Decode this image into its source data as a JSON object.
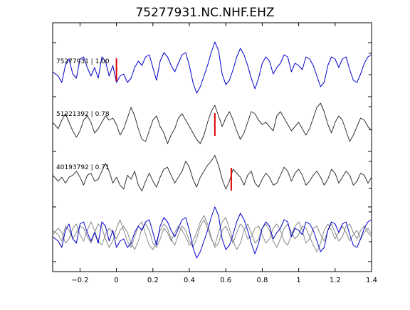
{
  "chart_data": {
    "type": "line",
    "title": "75277931.NC.NHF.EHZ",
    "xlabel": "",
    "ylabel": "",
    "xlim": [
      -0.35,
      1.4
    ],
    "xticks": [
      -0.2,
      0,
      0.2,
      0.4,
      0.6,
      0.8,
      1,
      1.2,
      1.4
    ],
    "xtick_labels": [
      "−0.2",
      "0",
      "0.2",
      "0.4",
      "0.6",
      "0.8",
      "1",
      "1.2",
      "1.4"
    ],
    "grid": false,
    "colors": {
      "reference": "#0000cc",
      "neighbor": "#333333",
      "overlay_gray": "#8a8a8a",
      "pick": "#dd0000"
    },
    "traces": [
      {
        "label": "75277931 | 1.00",
        "color": "reference",
        "pick_time": 0.0,
        "pick_height": 1.0,
        "x": [
          -0.35,
          -0.32,
          -0.3,
          -0.28,
          -0.26,
          -0.24,
          -0.22,
          -0.2,
          -0.18,
          -0.16,
          -0.14,
          -0.12,
          -0.1,
          -0.08,
          -0.06,
          -0.04,
          -0.02,
          0.0,
          0.02,
          0.04,
          0.06,
          0.08,
          0.1,
          0.12,
          0.14,
          0.16,
          0.18,
          0.2,
          0.22,
          0.24,
          0.26,
          0.28,
          0.3,
          0.32,
          0.34,
          0.36,
          0.38,
          0.4,
          0.42,
          0.44,
          0.46,
          0.48,
          0.5,
          0.52,
          0.54,
          0.56,
          0.58,
          0.6,
          0.62,
          0.64,
          0.66,
          0.68,
          0.7,
          0.72,
          0.74,
          0.76,
          0.78,
          0.8,
          0.82,
          0.84,
          0.86,
          0.88,
          0.9,
          0.92,
          0.94,
          0.96,
          0.98,
          1.0,
          1.02,
          1.04,
          1.06,
          1.08,
          1.1,
          1.12,
          1.14,
          1.16,
          1.18,
          1.2,
          1.22,
          1.24,
          1.26,
          1.28,
          1.3,
          1.32,
          1.34,
          1.36,
          1.38,
          1.4
        ],
        "y": [
          -0.1,
          -0.3,
          -0.6,
          0.2,
          0.5,
          -0.2,
          -0.4,
          0.5,
          0.6,
          0.1,
          -0.3,
          0.1,
          -0.4,
          0.6,
          0.4,
          -0.3,
          0.2,
          -0.6,
          -0.3,
          -0.2,
          -0.6,
          -0.4,
          0.1,
          0.4,
          0.2,
          0.6,
          0.7,
          0.1,
          -0.5,
          0.4,
          0.8,
          0.6,
          0.2,
          -0.1,
          0.3,
          0.7,
          0.8,
          0.2,
          -0.6,
          -1.1,
          -0.8,
          -0.3,
          0.2,
          0.8,
          1.3,
          0.9,
          -0.2,
          -0.7,
          -0.5,
          0.0,
          0.6,
          1.0,
          0.7,
          0.2,
          -0.4,
          -0.9,
          -0.4,
          0.3,
          0.6,
          0.4,
          -0.2,
          0.1,
          0.3,
          0.7,
          0.6,
          -0.1,
          0.3,
          0.2,
          0.0,
          0.6,
          0.5,
          0.2,
          -0.3,
          -0.8,
          -0.6,
          0.2,
          0.6,
          0.5,
          0.1,
          0.5,
          0.6,
          0.0,
          -0.5,
          -0.6,
          -0.2,
          0.3,
          0.6,
          0.7
        ]
      },
      {
        "label": "51221392 | 0.78",
        "color": "neighbor",
        "pick_time": 0.54,
        "pick_height": 1.0,
        "x": [
          -0.35,
          -0.32,
          -0.3,
          -0.28,
          -0.26,
          -0.24,
          -0.22,
          -0.2,
          -0.18,
          -0.16,
          -0.14,
          -0.12,
          -0.1,
          -0.08,
          -0.06,
          -0.04,
          -0.02,
          0.0,
          0.02,
          0.04,
          0.06,
          0.08,
          0.1,
          0.12,
          0.14,
          0.16,
          0.18,
          0.2,
          0.22,
          0.24,
          0.26,
          0.28,
          0.3,
          0.32,
          0.34,
          0.36,
          0.38,
          0.4,
          0.42,
          0.44,
          0.46,
          0.48,
          0.5,
          0.52,
          0.54,
          0.56,
          0.58,
          0.6,
          0.62,
          0.64,
          0.66,
          0.68,
          0.7,
          0.72,
          0.74,
          0.76,
          0.78,
          0.8,
          0.82,
          0.84,
          0.86,
          0.88,
          0.9,
          0.92,
          0.94,
          0.96,
          0.98,
          1.0,
          1.02,
          1.04,
          1.06,
          1.08,
          1.1,
          1.12,
          1.14,
          1.16,
          1.18,
          1.2,
          1.22,
          1.24,
          1.26,
          1.28,
          1.3,
          1.32,
          1.34,
          1.36,
          1.38,
          1.4
        ],
        "y": [
          0.1,
          -0.2,
          0.2,
          0.5,
          0.1,
          -0.3,
          -0.6,
          -0.3,
          0.2,
          0.4,
          0.1,
          -0.4,
          -0.2,
          0.1,
          0.4,
          0.2,
          0.3,
          0.0,
          -0.5,
          -0.2,
          0.3,
          0.8,
          0.4,
          -0.2,
          -0.7,
          -0.8,
          -0.3,
          0.2,
          0.4,
          -0.1,
          -0.4,
          -0.9,
          -0.5,
          -0.2,
          0.3,
          0.5,
          0.2,
          -0.1,
          -0.4,
          -0.7,
          -0.9,
          -0.5,
          0.1,
          0.6,
          0.9,
          0.4,
          -0.1,
          0.3,
          0.6,
          0.2,
          -0.3,
          -0.7,
          -0.4,
          0.1,
          0.6,
          0.5,
          0.2,
          0.0,
          0.1,
          -0.1,
          -0.3,
          0.4,
          0.6,
          0.3,
          0.0,
          -0.3,
          -0.1,
          0.1,
          -0.2,
          -0.5,
          -0.2,
          0.3,
          0.8,
          1.0,
          0.6,
          0.0,
          -0.4,
          0.1,
          0.4,
          0.2,
          -0.3,
          -0.8,
          -0.5,
          -0.1,
          0.3,
          0.2,
          -0.1,
          -0.3
        ]
      },
      {
        "label": "40193792 | 0.71",
        "color": "neighbor",
        "pick_time": 0.63,
        "pick_height": 1.0,
        "x": [
          -0.35,
          -0.32,
          -0.3,
          -0.28,
          -0.26,
          -0.24,
          -0.22,
          -0.2,
          -0.18,
          -0.16,
          -0.14,
          -0.12,
          -0.1,
          -0.08,
          -0.06,
          -0.04,
          -0.02,
          0.0,
          0.02,
          0.04,
          0.06,
          0.08,
          0.1,
          0.12,
          0.14,
          0.16,
          0.18,
          0.2,
          0.22,
          0.24,
          0.26,
          0.28,
          0.3,
          0.32,
          0.34,
          0.36,
          0.38,
          0.4,
          0.42,
          0.44,
          0.46,
          0.48,
          0.5,
          0.52,
          0.54,
          0.56,
          0.58,
          0.6,
          0.62,
          0.64,
          0.66,
          0.68,
          0.7,
          0.72,
          0.74,
          0.76,
          0.78,
          0.8,
          0.82,
          0.84,
          0.86,
          0.88,
          0.9,
          0.92,
          0.94,
          0.96,
          0.98,
          1.0,
          1.02,
          1.04,
          1.06,
          1.08,
          1.1,
          1.12,
          1.14,
          1.16,
          1.18,
          1.2,
          1.22,
          1.24,
          1.26,
          1.28,
          1.3,
          1.32,
          1.34,
          1.36,
          1.38,
          1.4
        ],
        "y": [
          0.2,
          -0.1,
          0.1,
          -0.2,
          0.1,
          0.2,
          0.4,
          0.1,
          -0.3,
          0.2,
          0.3,
          -0.1,
          0.0,
          0.4,
          0.8,
          0.4,
          -0.2,
          0.1,
          -0.3,
          -0.5,
          0.2,
          0.0,
          0.4,
          -0.3,
          -0.6,
          -0.1,
          0.3,
          -0.1,
          -0.4,
          0.1,
          0.5,
          0.6,
          0.2,
          -0.2,
          0.1,
          0.4,
          0.9,
          0.6,
          0.0,
          -0.4,
          0.1,
          0.4,
          0.7,
          0.9,
          1.2,
          0.7,
          0.0,
          -0.5,
          -0.1,
          0.5,
          0.3,
          0.1,
          -0.3,
          0.2,
          0.4,
          -0.2,
          -0.4,
          0.0,
          0.3,
          0.1,
          -0.3,
          -0.2,
          0.2,
          0.6,
          0.4,
          -0.1,
          0.3,
          0.5,
          0.2,
          -0.3,
          -0.1,
          0.2,
          0.4,
          0.1,
          -0.3,
          0.0,
          0.5,
          0.3,
          -0.2,
          0.1,
          0.4,
          0.2,
          -0.3,
          -0.1,
          0.3,
          0.2,
          -0.2,
          0.1
        ]
      }
    ],
    "overlay": {
      "series": [
        {
          "color": "reference",
          "y": [
            -0.1,
            -0.3,
            -0.6,
            0.2,
            0.5,
            -0.2,
            -0.4,
            0.5,
            0.6,
            0.1,
            -0.3,
            0.1,
            -0.4,
            0.6,
            0.4,
            -0.3,
            0.2,
            -0.6,
            -0.3,
            -0.2,
            -0.6,
            -0.4,
            0.1,
            0.4,
            0.2,
            0.6,
            0.7,
            0.1,
            -0.5,
            0.4,
            0.8,
            0.6,
            0.2,
            -0.1,
            0.3,
            0.7,
            0.8,
            0.2,
            -0.6,
            -1.1,
            -0.8,
            -0.3,
            0.2,
            0.8,
            1.3,
            0.9,
            -0.2,
            -0.7,
            -0.5,
            0.0,
            0.6,
            1.0,
            0.7,
            0.2,
            -0.4,
            -0.9,
            -0.4,
            0.3,
            0.6,
            0.4,
            -0.2,
            0.1,
            0.3,
            0.7,
            0.6,
            -0.1,
            0.3,
            0.2,
            0.0,
            0.6,
            0.5,
            0.2,
            -0.3,
            -0.8,
            -0.6,
            0.2,
            0.6,
            0.5,
            0.1,
            0.5,
            0.6,
            0.0,
            -0.5,
            -0.6,
            -0.2,
            0.3,
            0.6,
            0.7
          ]
        },
        {
          "color": "overlay_gray",
          "y": [
            0.2,
            0.0,
            -0.3,
            0.4,
            0.2,
            -0.2,
            0.1,
            0.4,
            0.3,
            -0.1,
            -0.4,
            0.1,
            0.5,
            0.3,
            -0.2,
            -0.6,
            -0.3,
            0.3,
            0.7,
            0.2,
            -0.3,
            -0.6,
            -0.1,
            0.4,
            0.6,
            0.0,
            -0.5,
            -0.7,
            -0.3,
            0.2,
            0.5,
            0.3,
            -0.2,
            -0.5,
            0.0,
            0.4,
            0.2,
            -0.3,
            -0.6,
            -0.2,
            0.4,
            0.7,
            0.3,
            -0.2,
            -0.5,
            0.1,
            0.6,
            0.8,
            0.3,
            -0.3,
            -0.7,
            -0.4,
            0.2,
            0.5,
            0.1,
            -0.4,
            -0.2,
            0.3,
            0.5,
            0.2,
            -0.3,
            -0.6,
            -0.2,
            0.3,
            0.5,
            0.1,
            -0.2,
            0.0,
            0.4,
            0.3,
            -0.1,
            -0.5,
            -0.8,
            -0.4,
            0.2,
            0.5,
            0.2,
            -0.2,
            0.1,
            0.4,
            0.1,
            -0.3,
            0.0,
            0.2,
            -0.2,
            0.1,
            0.3,
            0.0
          ]
        },
        {
          "color": "overlay_gray",
          "y": [
            0.0,
            0.3,
            0.1,
            -0.4,
            -0.2,
            0.3,
            0.5,
            0.0,
            -0.3,
            0.2,
            0.6,
            0.2,
            -0.3,
            -0.5,
            0.0,
            0.3,
            0.1,
            -0.2,
            0.2,
            0.4,
            0.1,
            -0.4,
            -0.7,
            -0.3,
            0.3,
            0.5,
            0.2,
            -0.4,
            -0.6,
            -0.2,
            0.3,
            0.1,
            -0.3,
            0.1,
            0.4,
            0.2,
            -0.1,
            -0.5,
            -0.3,
            0.1,
            0.6,
            0.9,
            0.5,
            -0.1,
            -0.6,
            -0.4,
            0.2,
            0.4,
            0.0,
            -0.4,
            0.1,
            0.5,
            0.3,
            -0.2,
            -0.1,
            0.3,
            0.4,
            0.0,
            -0.4,
            -0.2,
            0.3,
            0.5,
            0.2,
            -0.3,
            -0.5,
            0.0,
            0.4,
            0.6,
            0.2,
            -0.4,
            -0.2,
            0.3,
            0.4,
            0.0,
            -0.3,
            0.2,
            0.5,
            0.1,
            -0.3,
            -0.1,
            0.4,
            0.5,
            0.1,
            -0.2,
            0.2,
            0.4,
            0.1,
            -0.1
          ]
        }
      ]
    }
  }
}
